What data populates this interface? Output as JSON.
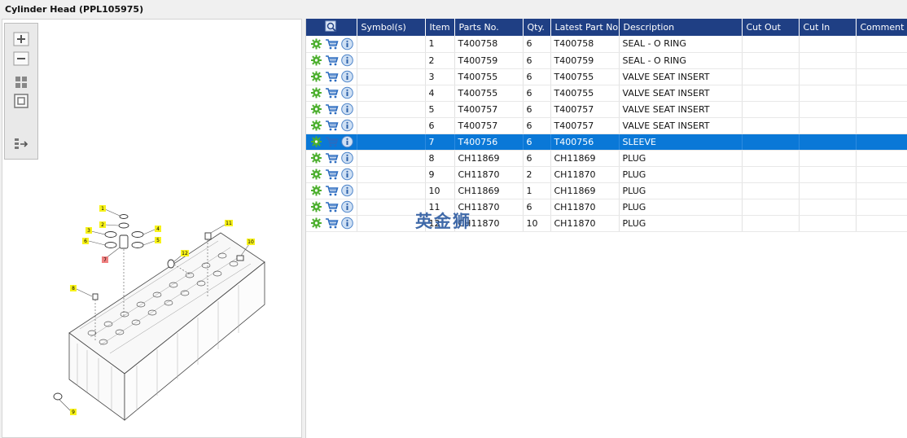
{
  "window": {
    "title": "Cylinder Head (PPL105975)"
  },
  "toolbar": {
    "tools": [
      "zoom-in-icon",
      "zoom-out-icon",
      "fit-all-icon",
      "fit-window-icon",
      "list-export-icon"
    ]
  },
  "diagram": {
    "callouts": [
      "1",
      "2",
      "3",
      "4",
      "5",
      "6",
      "7",
      "8",
      "9",
      "10",
      "11",
      "12"
    ],
    "highlighted_callout": "7"
  },
  "table": {
    "columns": [
      "",
      "Symbol(s)",
      "Item",
      "Parts No.",
      "Qty.",
      "Latest Part No.",
      "Description",
      "Cut Out",
      "Cut In",
      "Comment"
    ],
    "rows": [
      {
        "item": "1",
        "part_no": "T400758",
        "qty": "6",
        "latest": "T400758",
        "desc": "SEAL - O RING"
      },
      {
        "item": "2",
        "part_no": "T400759",
        "qty": "6",
        "latest": "T400759",
        "desc": "SEAL - O RING"
      },
      {
        "item": "3",
        "part_no": "T400755",
        "qty": "6",
        "latest": "T400755",
        "desc": "VALVE SEAT INSERT"
      },
      {
        "item": "4",
        "part_no": "T400755",
        "qty": "6",
        "latest": "T400755",
        "desc": "VALVE SEAT INSERT"
      },
      {
        "item": "5",
        "part_no": "T400757",
        "qty": "6",
        "latest": "T400757",
        "desc": "VALVE SEAT INSERT"
      },
      {
        "item": "6",
        "part_no": "T400757",
        "qty": "6",
        "latest": "T400757",
        "desc": "VALVE SEAT INSERT"
      },
      {
        "item": "7",
        "part_no": "T400756",
        "qty": "6",
        "latest": "T400756",
        "desc": "SLEEVE",
        "selected": true
      },
      {
        "item": "8",
        "part_no": "CH11869",
        "qty": "6",
        "latest": "CH11869",
        "desc": "PLUG"
      },
      {
        "item": "9",
        "part_no": "CH11870",
        "qty": "2",
        "latest": "CH11870",
        "desc": "PLUG"
      },
      {
        "item": "10",
        "part_no": "CH11869",
        "qty": "1",
        "latest": "CH11869",
        "desc": "PLUG"
      },
      {
        "item": "11",
        "part_no": "CH11870",
        "qty": "6",
        "latest": "CH11870",
        "desc": "PLUG"
      },
      {
        "item": "12",
        "part_no": "CH11870",
        "qty": "10",
        "latest": "CH11870",
        "desc": "PLUG"
      }
    ]
  },
  "watermark": "英金狮",
  "colors": {
    "header_bg": "#1f3f84",
    "selected_row": "#0a78d7",
    "callout_yellow": "#f7f21a",
    "callout_red": "#f08080"
  }
}
